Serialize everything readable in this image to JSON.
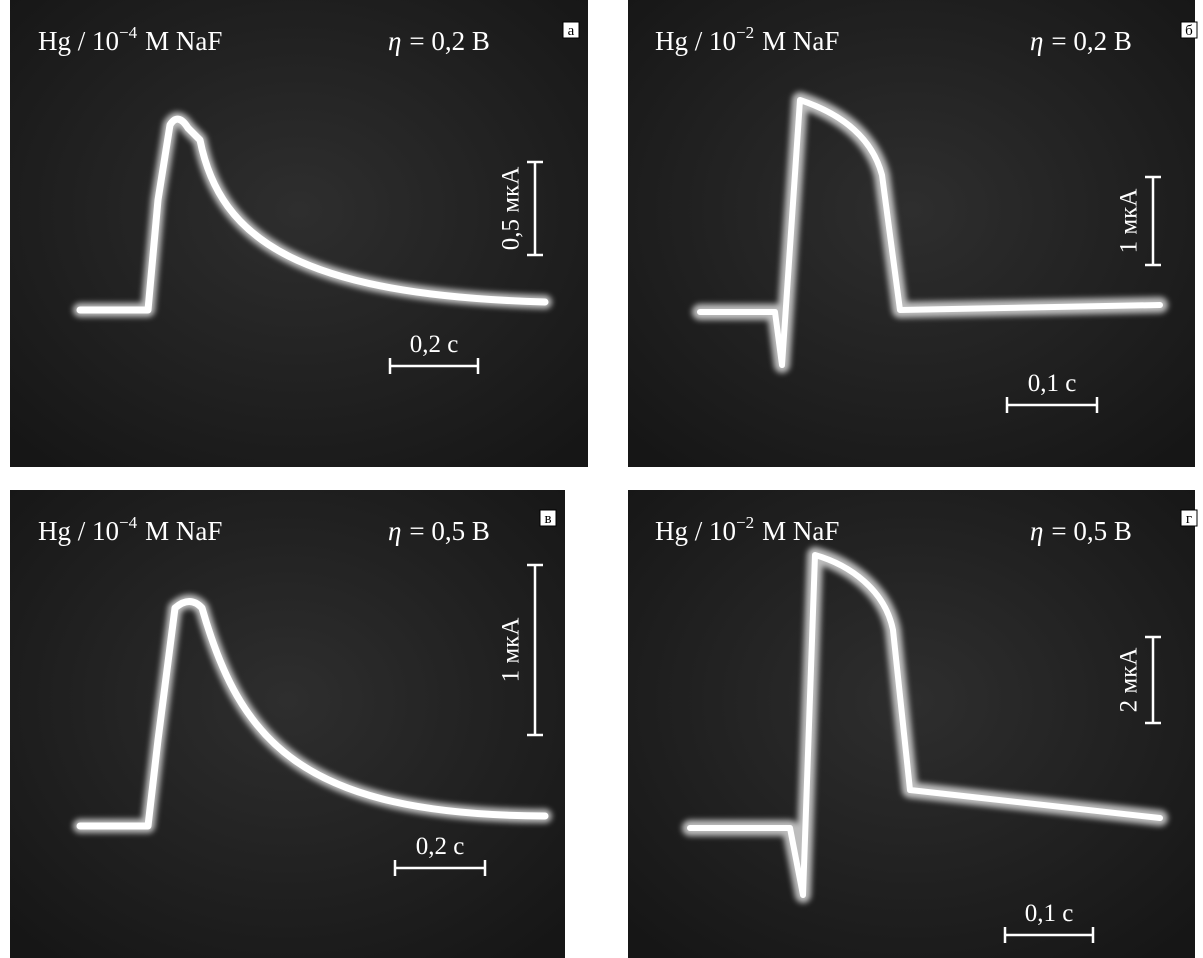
{
  "panels": [
    {
      "letter": "а",
      "substrate": "Hg / 10",
      "exponent": "−4",
      "electrolyte": "M NaF",
      "symbol": "η",
      "overpotential": "= 0,2 В",
      "current_scale": "0,5 мкА",
      "time_scale": "0,2 с"
    },
    {
      "letter": "б",
      "substrate": "Hg / 10",
      "exponent": "−2",
      "electrolyte": "M NaF",
      "symbol": "η",
      "overpotential": "= 0,2 В",
      "current_scale": "1 мкА",
      "time_scale": "0,1 с"
    },
    {
      "letter": "в",
      "substrate": "Hg / 10",
      "exponent": "−4",
      "electrolyte": "M NaF",
      "symbol": "η",
      "overpotential": "= 0,5 В",
      "current_scale": "1 мкА",
      "time_scale": "0,2 с"
    },
    {
      "letter": "г",
      "substrate": "Hg / 10",
      "exponent": "−2",
      "electrolyte": "M NaF",
      "symbol": "η",
      "overpotential": "= 0,5 В",
      "current_scale": "2 мкА",
      "time_scale": "0,1 с"
    }
  ]
}
